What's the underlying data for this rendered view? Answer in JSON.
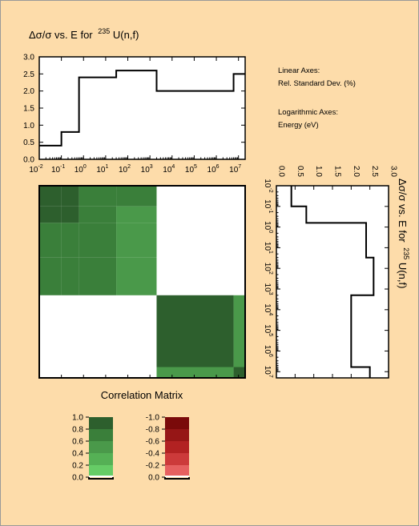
{
  "colors": {
    "background": "#fddcaa",
    "green_scale": [
      "#ffffff",
      "#66cc66",
      "#55b055",
      "#4a994a",
      "#3a7f3a",
      "#2d5f2d"
    ],
    "red_scale": [
      "#ffffff",
      "#e66060",
      "#cc3a3a",
      "#b22222",
      "#961616",
      "#7a0a0a"
    ]
  },
  "chart_data": [
    {
      "type": "line",
      "title_prefix": "Δσ/σ vs. E for",
      "title_sup": "235",
      "title_suffix": "U(n,f)",
      "x_scale": "log",
      "x_ticks_exp": [
        -2,
        -1,
        0,
        1,
        2,
        3,
        4,
        5,
        6,
        7
      ],
      "x_tick_base": "10",
      "xlim": [
        0.01,
        20000000
      ],
      "y_ticks": [
        "0.0",
        "0.5",
        "1.0",
        "1.5",
        "2.0",
        "2.5",
        "3.0"
      ],
      "ylim": [
        0,
        3
      ],
      "step_edges_eV": [
        0.01,
        0.1,
        0.625,
        30,
        2000,
        6000000,
        20000000
      ],
      "step_values_pct": [
        0.4,
        0.8,
        2.4,
        2.6,
        2.0,
        2.5
      ]
    },
    {
      "type": "heatmap",
      "title": "Correlation Matrix",
      "groups": 6,
      "cells": [
        [
          5,
          5,
          4,
          4,
          0,
          0
        ],
        [
          5,
          5,
          4,
          3,
          0,
          0
        ],
        [
          4,
          4,
          4,
          3,
          0,
          0
        ],
        [
          4,
          4,
          4,
          3,
          0,
          0
        ],
        [
          0,
          0,
          0,
          0,
          5,
          3
        ],
        [
          0,
          0,
          0,
          0,
          3,
          5
        ]
      ]
    },
    {
      "type": "line",
      "orientation": "vertical",
      "title_prefix": "Δσ/σ vs. E for",
      "title_sup": "235",
      "title_suffix": "U(n,f)",
      "x_ticks": [
        "0.0",
        "0.5",
        "1.0",
        "1.5",
        "2.0",
        "2.5",
        "3.0"
      ],
      "y_scale": "log",
      "y_ticks_exp": [
        -2,
        -1,
        0,
        1,
        2,
        3,
        4,
        5,
        6,
        7
      ],
      "y_tick_base": "10",
      "step_edges_eV": [
        0.01,
        0.1,
        0.625,
        30,
        2000,
        6000000,
        20000000
      ],
      "step_values_pct": [
        0.4,
        0.8,
        2.4,
        2.6,
        2.0,
        2.5
      ]
    }
  ],
  "notes": {
    "linear_axes": "Linear Axes:",
    "linear_desc": "Rel. Standard Dev. (%)",
    "log_axes": "Logarithmic Axes:",
    "log_desc": "Energy (eV)"
  },
  "legend_positive": {
    "labels": [
      "1.0",
      "0.8",
      "0.6",
      "0.4",
      "0.2",
      "0.0"
    ]
  },
  "legend_negative": {
    "labels": [
      "-1.0",
      "-0.8",
      "-0.6",
      "-0.4",
      "-0.2",
      "0.0"
    ]
  }
}
